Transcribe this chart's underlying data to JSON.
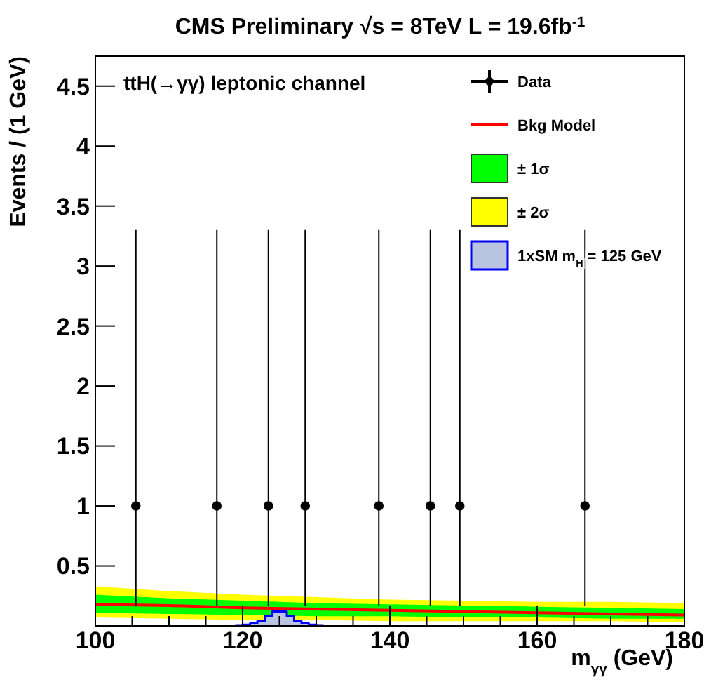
{
  "chart_data": {
    "type": "scatter",
    "title": "CMS Preliminary  √s = 8TeV L = 19.6fb$^{-1}$",
    "xlabel": "m$_{γγ}$ (GeV)",
    "ylabel": "Events / (1 GeV)",
    "annotations": [
      "ttH(→γγ) leptonic channel"
    ],
    "xlim": [
      100,
      180
    ],
    "xticks": [
      100,
      {
        "value": 105,
        "label": null
      },
      {
        "value": 110,
        "label": null
      },
      {
        "value": 115,
        "label": null
      },
      120,
      {
        "value": 125,
        "label": null
      },
      {
        "value": 130,
        "label": null
      },
      {
        "value": 135,
        "label": null
      },
      140,
      {
        "value": 145,
        "label": null
      },
      {
        "value": 150,
        "label": null
      },
      {
        "value": 155,
        "label": null
      },
      160,
      {
        "value": 165,
        "label": null
      },
      {
        "value": 170,
        "label": null
      },
      {
        "value": 175,
        "label": null
      },
      180
    ],
    "ylim": [
      0,
      4.75
    ],
    "yticks": [
      0.5,
      1,
      1.5,
      2,
      2.5,
      3,
      3.5,
      4,
      4.5
    ],
    "legend": "top right",
    "grid": false,
    "series": [
      {
        "name": "Data",
        "color": "#000000",
        "marker": "circle",
        "x": [
          105.5,
          116.5,
          123.5,
          128.5,
          138.5,
          145.5,
          149.5,
          166.5
        ],
        "values": [
          1,
          1,
          1,
          1,
          1,
          1,
          1,
          1
        ],
        "errors": [
          [
            0.17,
            3.3
          ],
          [
            0.17,
            3.3
          ],
          [
            0.17,
            3.3
          ],
          [
            0.17,
            3.3
          ],
          [
            0.17,
            3.3
          ],
          [
            0.17,
            3.3
          ],
          [
            0.17,
            3.3
          ],
          [
            0.17,
            3.3
          ]
        ]
      },
      {
        "name": "Bkg Model",
        "type": "line",
        "color": "#ff0000",
        "x": [
          100,
          110,
          120,
          130,
          140,
          150,
          160,
          170,
          180
        ],
        "values": [
          0.18,
          0.17,
          0.15,
          0.14,
          0.13,
          0.12,
          0.11,
          0.1,
          0.09
        ]
      },
      {
        "name": "± 1σ",
        "type": "line",
        "color": "#00ff00",
        "x": [
          100,
          110,
          120,
          130,
          140,
          150,
          160,
          170,
          180
        ],
        "values": [
          null,
          null,
          null,
          null,
          null,
          null,
          null,
          null,
          null
        ],
        "lower": [
          0.11,
          0.1,
          0.09,
          0.08,
          0.08,
          0.07,
          0.07,
          0.06,
          0.06
        ],
        "upper": [
          0.26,
          0.23,
          0.21,
          0.19,
          0.18,
          0.17,
          0.16,
          0.15,
          0.14
        ]
      },
      {
        "name": "± 2σ",
        "type": "line",
        "color": "#ffff00",
        "x": [
          100,
          110,
          120,
          130,
          140,
          150,
          160,
          170,
          180
        ],
        "values": [
          null,
          null,
          null,
          null,
          null,
          null,
          null,
          null,
          null
        ],
        "lower": [
          0.07,
          0.06,
          0.05,
          0.05,
          0.04,
          0.04,
          0.04,
          0.04,
          0.03
        ],
        "upper": [
          0.33,
          0.29,
          0.26,
          0.24,
          0.22,
          0.21,
          0.2,
          0.2,
          0.19
        ]
      },
      {
        "name": "1xSM m$_{H}$ = 125 GeV",
        "type": "step",
        "color": "#0000ff",
        "x": [
          119,
          120,
          121,
          122,
          123,
          124,
          125,
          126,
          127,
          128,
          129,
          130,
          131
        ],
        "values": [
          0,
          0.01,
          0.02,
          0.04,
          0.08,
          0.12,
          0.12,
          0.08,
          0.04,
          0.02,
          0.01,
          0,
          0
        ]
      }
    ]
  }
}
